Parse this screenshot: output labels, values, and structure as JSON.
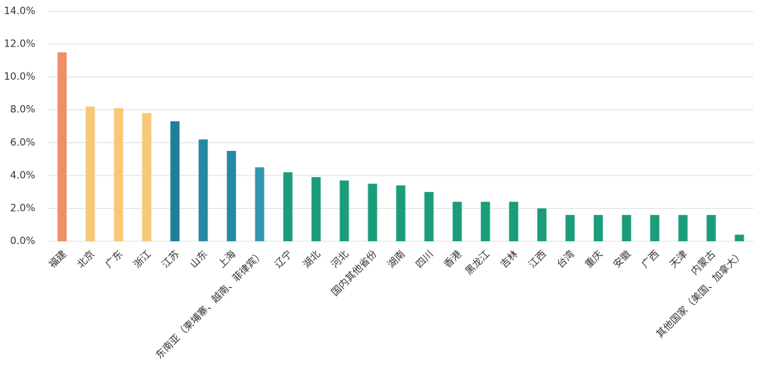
{
  "chart_data": {
    "type": "bar",
    "categories": [
      "福建",
      "北京",
      "广东",
      "浙江",
      "江苏",
      "山东",
      "上海",
      "东南亚（柬埔寨、越南、菲律宾）",
      "辽宁",
      "湖北",
      "河北",
      "国内其他省份",
      "湖南",
      "四川",
      "香港",
      "黑龙江",
      "吉林",
      "江西",
      "台湾",
      "重庆",
      "安徽",
      "广西",
      "天津",
      "内蒙古",
      "其他国家（美国、加拿大）"
    ],
    "values": [
      11.5,
      8.2,
      8.1,
      7.8,
      7.3,
      6.2,
      5.5,
      4.5,
      4.2,
      3.9,
      3.7,
      3.5,
      3.4,
      3.0,
      2.4,
      2.4,
      2.4,
      2.0,
      1.6,
      1.6,
      1.6,
      1.6,
      1.6,
      1.6,
      0.4
    ],
    "colors": [
      "#ee8f66",
      "#f6c877",
      "#f6c877",
      "#f6c877",
      "#1f7f98",
      "#238aa1",
      "#238aa1",
      "#3495b1",
      "#1b9c7b",
      "#1b9c7b",
      "#1b9c7b",
      "#1b9c7b",
      "#1b9c7b",
      "#1b9c7b",
      "#1b9c7b",
      "#1b9c7b",
      "#1b9c7b",
      "#1b9c7b",
      "#1b9c7b",
      "#1b9c7b",
      "#1b9c7b",
      "#1b9c7b",
      "#1b9c7b",
      "#1b9c7b",
      "#1b9c7b"
    ],
    "ylim": [
      0,
      14
    ],
    "yticks": [
      {
        "value": 0,
        "label": "0.0%"
      },
      {
        "value": 2,
        "label": "2.0%"
      },
      {
        "value": 4,
        "label": "4.0%"
      },
      {
        "value": 6,
        "label": "6.0%"
      },
      {
        "value": 8,
        "label": "8.0%"
      },
      {
        "value": 10,
        "label": "10.0%"
      },
      {
        "value": 12,
        "label": "12.0%"
      },
      {
        "value": 14,
        "label": "14.0%"
      }
    ],
    "grid": true
  }
}
